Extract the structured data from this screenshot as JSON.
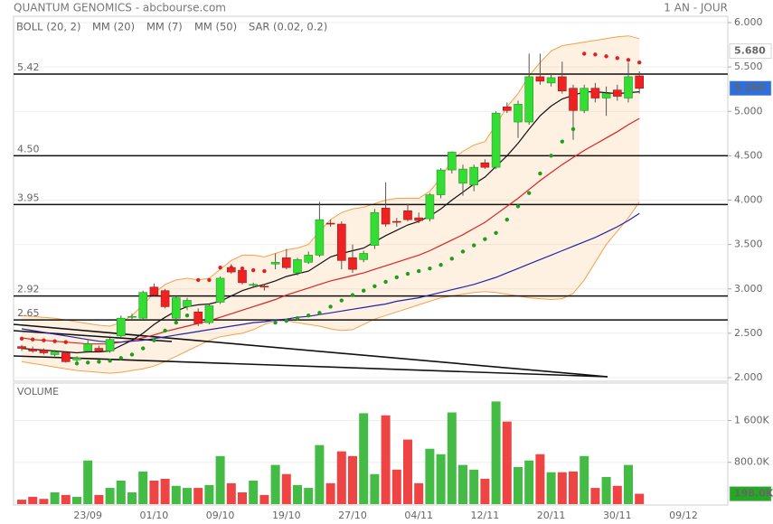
{
  "header": {
    "title": "QUANTUM GENOMICS - abcbourse.com",
    "period": "1 AN - JOUR"
  },
  "chart_data": [
    {
      "type": "candlestick",
      "up_color": "#33dd33",
      "down_color": "#ee2222",
      "open": [
        2.35,
        2.32,
        2.31,
        2.26,
        2.28,
        2.2,
        2.3,
        2.33,
        2.3,
        2.47,
        2.69,
        2.67,
        3.02,
        2.98,
        2.67,
        2.8,
        2.74,
        2.62,
        2.85,
        3.24,
        3.21,
        3.04,
        3.03,
        3.28,
        3.35,
        3.18,
        3.3,
        3.38,
        3.74,
        3.73,
        3.35,
        3.33,
        3.49,
        3.91,
        3.76,
        3.88,
        3.8,
        3.79,
        4.06,
        4.34,
        4.19,
        4.17,
        4.42,
        4.37,
        5.05,
        4.88,
        4.88,
        5.39,
        5.32,
        5.39,
        5.26,
        5.01,
        5.26,
        5.15,
        5.24,
        5.15,
        5.4,
        null,
        null,
        null,
        null,
        null,
        null,
        null,
        null
      ],
      "high": [
        2.37,
        2.35,
        2.33,
        2.31,
        2.3,
        2.24,
        2.42,
        2.36,
        2.45,
        2.7,
        2.72,
        2.98,
        3.06,
        3.0,
        2.92,
        2.9,
        2.78,
        2.83,
        3.14,
        3.28,
        3.24,
        3.07,
        3.05,
        3.4,
        3.45,
        3.35,
        3.42,
        3.98,
        3.78,
        3.76,
        3.5,
        3.43,
        3.9,
        4.2,
        3.8,
        3.96,
        3.86,
        4.08,
        4.36,
        4.55,
        4.4,
        4.4,
        4.46,
        5.0,
        5.1,
        5.12,
        5.65,
        5.65,
        5.42,
        5.56,
        5.3,
        5.3,
        5.32,
        5.28,
        5.3,
        5.55,
        5.45,
        null,
        null,
        null,
        null,
        null,
        null,
        null,
        null
      ],
      "low": [
        2.3,
        2.28,
        2.26,
        2.24,
        2.17,
        2.18,
        2.28,
        2.28,
        2.28,
        2.45,
        2.66,
        2.65,
        2.92,
        2.78,
        2.64,
        2.76,
        2.58,
        2.6,
        2.83,
        3.17,
        3.05,
        3.01,
        2.98,
        3.22,
        3.22,
        3.15,
        3.28,
        3.36,
        3.7,
        3.22,
        3.18,
        3.3,
        3.45,
        3.7,
        3.7,
        3.76,
        3.74,
        3.76,
        4.02,
        4.3,
        4.05,
        4.1,
        4.35,
        4.35,
        4.98,
        4.7,
        4.85,
        5.3,
        5.28,
        5.2,
        4.68,
        4.98,
        5.1,
        4.95,
        5.12,
        5.1,
        5.2,
        null,
        null,
        null,
        null,
        null,
        null,
        null,
        null
      ],
      "close": [
        2.33,
        2.3,
        2.28,
        2.29,
        2.18,
        2.22,
        2.38,
        2.3,
        2.43,
        2.67,
        2.69,
        2.96,
        2.93,
        2.8,
        2.9,
        2.87,
        2.61,
        2.81,
        3.12,
        3.19,
        3.07,
        3.05,
        3.02,
        3.3,
        3.24,
        3.33,
        3.38,
        3.78,
        3.73,
        3.32,
        3.22,
        3.4,
        3.86,
        3.73,
        3.75,
        3.78,
        3.77,
        4.06,
        4.34,
        4.54,
        4.35,
        4.37,
        4.37,
        4.98,
        5.01,
        5.08,
        5.39,
        5.34,
        5.38,
        5.23,
        5.01,
        5.26,
        5.15,
        5.2,
        5.17,
        5.39,
        5.26,
        null,
        null,
        null,
        null,
        null,
        null,
        null,
        null
      ],
      "series": [
        {
          "name": "BOLL (20, 2)",
          "color": "#f5a04a",
          "fill": "rgba(255,190,120,0.22)",
          "upper": [
            2.7,
            2.69,
            2.68,
            2.67,
            2.65,
            2.63,
            2.61,
            2.59,
            2.58,
            2.62,
            2.7,
            2.82,
            2.95,
            3.05,
            3.1,
            3.12,
            3.1,
            3.12,
            3.22,
            3.32,
            3.38,
            3.38,
            3.36,
            3.4,
            3.44,
            3.46,
            3.5,
            3.65,
            3.78,
            3.86,
            3.9,
            3.92,
            3.96,
            4.0,
            4.02,
            4.02,
            4.02,
            4.1,
            4.25,
            4.45,
            4.55,
            4.62,
            4.66,
            4.85,
            5.05,
            5.2,
            5.4,
            5.55,
            5.68,
            5.74,
            5.76,
            5.78,
            5.8,
            5.82,
            5.84,
            5.85,
            5.82,
            null,
            null,
            null,
            null,
            null,
            null,
            null,
            null
          ],
          "lower": [
            2.18,
            2.16,
            2.14,
            2.12,
            2.1,
            2.08,
            2.07,
            2.06,
            2.05,
            2.06,
            2.08,
            2.1,
            2.13,
            2.18,
            2.24,
            2.3,
            2.36,
            2.42,
            2.46,
            2.48,
            2.5,
            2.54,
            2.6,
            2.64,
            2.64,
            2.62,
            2.6,
            2.58,
            2.55,
            2.53,
            2.54,
            2.6,
            2.66,
            2.7,
            2.74,
            2.78,
            2.82,
            2.86,
            2.9,
            2.92,
            2.94,
            2.96,
            2.97,
            2.96,
            2.94,
            2.92,
            2.9,
            2.89,
            2.88,
            2.89,
            2.95,
            3.1,
            3.3,
            3.5,
            3.65,
            3.8,
            3.98,
            null,
            null,
            null,
            null,
            null,
            null,
            null,
            null
          ]
        },
        {
          "name": "MM (20)",
          "color": "#dd2222",
          "values": [
            2.45,
            2.43,
            2.42,
            2.41,
            2.4,
            2.39,
            2.38,
            2.38,
            2.38,
            2.4,
            2.42,
            2.45,
            2.48,
            2.52,
            2.55,
            2.58,
            2.61,
            2.64,
            2.68,
            2.72,
            2.76,
            2.8,
            2.84,
            2.88,
            2.93,
            2.97,
            3.01,
            3.05,
            3.09,
            3.12,
            3.15,
            3.18,
            3.22,
            3.26,
            3.3,
            3.34,
            3.38,
            3.43,
            3.49,
            3.55,
            3.61,
            3.68,
            3.75,
            3.84,
            3.93,
            4.02,
            4.12,
            4.22,
            4.31,
            4.4,
            4.48,
            4.56,
            4.63,
            4.7,
            4.77,
            4.85,
            4.92,
            null,
            null,
            null,
            null,
            null,
            null,
            null,
            null
          ]
        },
        {
          "name": "MM (7)",
          "color": "#111111",
          "values": [
            2.33,
            2.32,
            2.31,
            2.3,
            2.29,
            2.28,
            2.29,
            2.29,
            2.3,
            2.36,
            2.42,
            2.5,
            2.6,
            2.68,
            2.75,
            2.8,
            2.82,
            2.83,
            2.86,
            2.92,
            2.98,
            3.02,
            3.05,
            3.09,
            3.14,
            3.17,
            3.2,
            3.28,
            3.36,
            3.4,
            3.43,
            3.46,
            3.53,
            3.6,
            3.66,
            3.72,
            3.76,
            3.82,
            3.9,
            4.0,
            4.09,
            4.18,
            4.26,
            4.38,
            4.5,
            4.64,
            4.8,
            4.95,
            5.06,
            5.14,
            5.18,
            5.22,
            5.22,
            5.21,
            5.2,
            5.21,
            5.22,
            null,
            null,
            null,
            null,
            null,
            null,
            null,
            null
          ]
        },
        {
          "name": "MM (50)",
          "color": "#2222aa",
          "values": [
            2.55,
            2.53,
            2.51,
            2.49,
            2.47,
            2.45,
            2.43,
            2.41,
            2.4,
            2.4,
            2.41,
            2.42,
            2.44,
            2.46,
            2.48,
            2.5,
            2.52,
            2.54,
            2.56,
            2.58,
            2.6,
            2.62,
            2.63,
            2.65,
            2.66,
            2.68,
            2.69,
            2.71,
            2.73,
            2.75,
            2.77,
            2.79,
            2.81,
            2.83,
            2.86,
            2.88,
            2.9,
            2.93,
            2.96,
            2.99,
            3.02,
            3.05,
            3.09,
            3.13,
            3.18,
            3.23,
            3.28,
            3.33,
            3.38,
            3.43,
            3.48,
            3.53,
            3.58,
            3.64,
            3.7,
            3.77,
            3.85,
            null,
            null,
            null,
            null,
            null,
            null,
            null,
            null
          ]
        },
        {
          "name": "SAR (0.02, 0.2)",
          "color": "#dd2222",
          "below_color": "#1e9e1e",
          "style": "dots",
          "values": [
            2.44,
            2.43,
            2.42,
            2.41,
            2.4,
            2.16,
            2.17,
            2.18,
            2.19,
            2.22,
            2.26,
            2.33,
            2.42,
            2.53,
            2.62,
            2.7,
            3.1,
            3.1,
            3.24,
            3.24,
            3.23,
            3.21,
            3.2,
            2.62,
            2.64,
            2.67,
            2.7,
            2.73,
            2.8,
            2.87,
            2.93,
            2.98,
            3.03,
            3.08,
            3.13,
            3.17,
            3.2,
            3.23,
            3.27,
            3.34,
            3.42,
            3.49,
            3.56,
            3.63,
            3.78,
            3.93,
            4.08,
            4.3,
            4.5,
            4.66,
            4.8,
            5.65,
            5.64,
            5.62,
            5.6,
            5.58,
            5.55,
            null,
            null,
            null,
            null,
            null,
            null,
            null,
            null
          ]
        }
      ],
      "levels": [
        5.42,
        {
          "value": 4.5,
          "label": "4.50"
        },
        3.95,
        2.92,
        2.65
      ],
      "badges": [
        {
          "value": 5.68,
          "label": "5.680",
          "color": "#ffffff",
          "text_color": "#111111"
        },
        {
          "value": 5.26,
          "label": "5.260",
          "color": "#2b6fe0",
          "text_color": "#ffffff"
        }
      ],
      "ylim": [
        2,
        6
      ],
      "yticks": [
        {
          "value": 2,
          "label": "2.000"
        },
        {
          "value": 2.5,
          "label": "2.500"
        },
        {
          "value": 3,
          "label": "3.000"
        },
        {
          "value": 3.5,
          "label": "3.500"
        },
        {
          "value": 4,
          "label": "4.000"
        },
        {
          "value": 4.5,
          "label": "4.500"
        },
        {
          "value": 5,
          "label": "5.000"
        },
        {
          "value": 5.5,
          "label": "5.500"
        },
        {
          "value": 6,
          "label": "6.000"
        }
      ],
      "grid": true
    },
    {
      "type": "bar",
      "title": "VOLUME",
      "up_color": "#44bb44",
      "down_color": "#ee4444",
      "categories": [
        null,
        null,
        null,
        null,
        null,
        null,
        "23/09",
        null,
        null,
        null,
        null,
        null,
        "01/10",
        null,
        null,
        null,
        null,
        null,
        "09/10",
        null,
        null,
        null,
        null,
        null,
        "19/10",
        null,
        null,
        null,
        null,
        null,
        "27/10",
        null,
        null,
        null,
        null,
        null,
        "04/11",
        null,
        null,
        null,
        null,
        null,
        "12/11",
        null,
        null,
        null,
        null,
        null,
        "20/11",
        null,
        null,
        null,
        null,
        null,
        "30/11",
        null,
        null,
        null,
        null,
        null,
        "09/12",
        null,
        null,
        null,
        null
      ],
      "values": [
        85000,
        140000,
        100000,
        225000,
        175000,
        140000,
        835000,
        175000,
        310000,
        450000,
        225000,
        625000,
        450000,
        485000,
        350000,
        310000,
        310000,
        365000,
        920000,
        400000,
        225000,
        450000,
        175000,
        750000,
        575000,
        365000,
        310000,
        1130000,
        400000,
        1010000,
        920000,
        1740000,
        575000,
        1700000,
        660000,
        1235000,
        400000,
        1060000,
        955000,
        1755000,
        750000,
        660000,
        485000,
        1965000,
        1580000,
        710000,
        835000,
        955000,
        610000,
        610000,
        625000,
        920000,
        310000,
        520000,
        350000,
        750000,
        198000,
        null,
        null,
        null,
        null,
        null,
        null,
        null,
        null
      ],
      "badges": [
        {
          "value": 198000,
          "label": "198.0K",
          "color": "#22aa22",
          "text_color": "#ffffff"
        }
      ],
      "ylim": [
        0,
        2300000
      ],
      "yticks": [
        {
          "value": 800000,
          "label": "800.0K"
        },
        {
          "value": 1600000,
          "label": "1 600K"
        }
      ],
      "grid": true
    }
  ]
}
